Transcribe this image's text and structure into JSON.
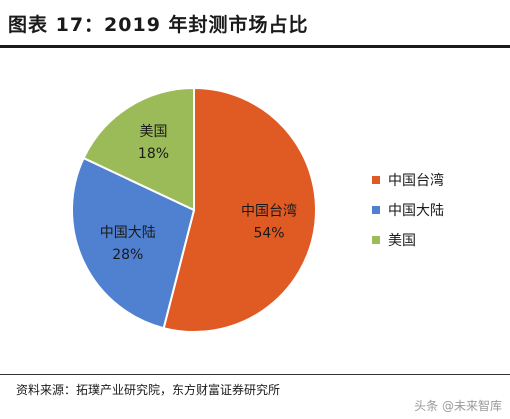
{
  "title": "图表 17：2019 年封测市场占比",
  "source": "资料来源：拓璞产业研究院，东方财富证券研究所",
  "watermark": "头条 @未来智库",
  "chart_data": {
    "type": "pie",
    "title": "图表 17：2019 年封测市场占比",
    "slices": [
      {
        "name": "中国台湾",
        "value": 54,
        "label": "54%",
        "color": "#e05a24"
      },
      {
        "name": "中国大陆",
        "value": 28,
        "label": "28%",
        "color": "#4f81d0"
      },
      {
        "name": "美国",
        "value": 18,
        "label": "18%",
        "color": "#9bbb59"
      }
    ],
    "legend_placement": "right"
  }
}
